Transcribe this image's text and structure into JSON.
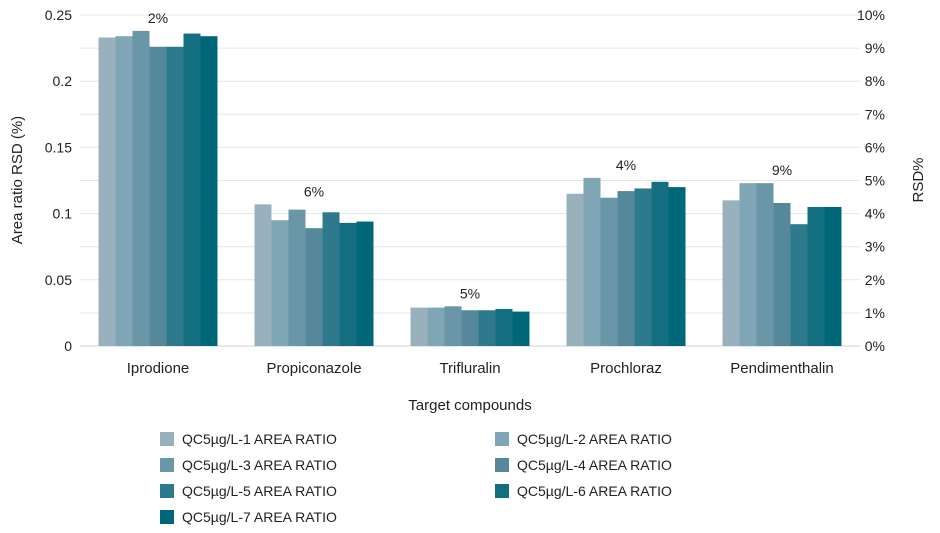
{
  "chart_data": {
    "type": "bar",
    "categories": [
      "Iprodione",
      "Propiconazole",
      "Trifluralin",
      "Prochloraz",
      "Pendimenthalin"
    ],
    "series": [
      {
        "name": "QC5µg/L-1 AREA RATIO",
        "color": "#98b1bd",
        "values": [
          0.233,
          0.107,
          0.029,
          0.115,
          0.11
        ]
      },
      {
        "name": "QC5µg/L-2 AREA RATIO",
        "color": "#7fa6b5",
        "values": [
          0.234,
          0.095,
          0.029,
          0.127,
          0.123
        ]
      },
      {
        "name": "QC5µg/L-3 AREA RATIO",
        "color": "#6a97a8",
        "values": [
          0.238,
          0.103,
          0.03,
          0.112,
          0.123
        ]
      },
      {
        "name": "QC5µg/L-4 AREA RATIO",
        "color": "#55889b",
        "values": [
          0.226,
          0.089,
          0.027,
          0.117,
          0.108
        ]
      },
      {
        "name": "QC5µg/L-5 AREA RATIO",
        "color": "#2e7a8c",
        "values": [
          0.226,
          0.101,
          0.027,
          0.119,
          0.092
        ]
      },
      {
        "name": "QC5µg/L-6 AREA RATIO",
        "color": "#136f80",
        "values": [
          0.236,
          0.093,
          0.028,
          0.124,
          0.105
        ]
      },
      {
        "name": "QC5µg/L-7 AREA RATIO",
        "color": "#006778",
        "values": [
          0.234,
          0.094,
          0.026,
          0.12,
          0.105
        ]
      }
    ],
    "rsd_labels": [
      "2%",
      "6%",
      "5%",
      "4%",
      "9%"
    ],
    "xlabel": "Target compounds",
    "ylabel": "Area ratio RSD (%)",
    "y2label": "RSD%",
    "ylim": [
      0,
      0.25
    ],
    "y2lim": [
      0,
      10
    ],
    "yticks": [
      "0",
      "0.05",
      "0.1",
      "0.15",
      "0.2",
      "0.25"
    ],
    "y2ticks": [
      "0%",
      "1%",
      "2%",
      "3%",
      "4%",
      "5%",
      "6%",
      "7%",
      "8%",
      "9%",
      "10%"
    ],
    "grid": true,
    "legend_position": "bottom"
  }
}
